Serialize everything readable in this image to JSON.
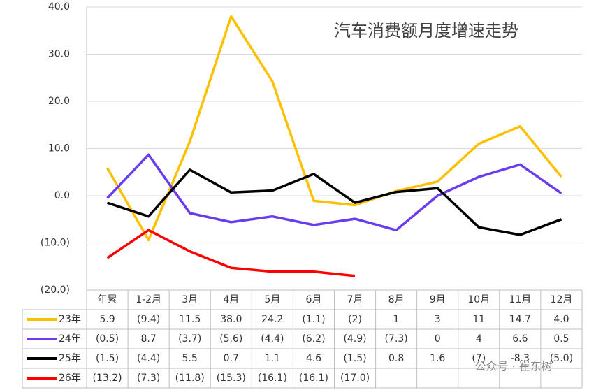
{
  "chart_data": {
    "type": "line",
    "title": "汽车消费额月度增速走势",
    "watermark": "公众号 · 崔东树",
    "categories": [
      "年累",
      "1-2月",
      "3月",
      "4月",
      "5月",
      "6月",
      "7月",
      "8月",
      "9月",
      "10月",
      "11月",
      "12月"
    ],
    "ylim": [
      -20,
      40
    ],
    "yticks": [
      {
        "value": 40,
        "label": "40.0"
      },
      {
        "value": 30,
        "label": "30.0"
      },
      {
        "value": 20,
        "label": "20.0"
      },
      {
        "value": 10,
        "label": "10.0"
      },
      {
        "value": 0,
        "label": "0.0"
      },
      {
        "value": -10,
        "label": "(10.0)"
      },
      {
        "value": -20,
        "label": "(20.0)"
      }
    ],
    "grid": true,
    "series": [
      {
        "name": "23年",
        "color": "#ffc000",
        "values": [
          5.9,
          -9.4,
          11.5,
          38,
          24.2,
          -1.1,
          -2,
          1,
          3,
          11,
          14.7,
          4
        ],
        "value_labels": [
          "5.9",
          "(9.4)",
          "11.5",
          "38.0",
          "24.2",
          "(1.1)",
          "(2)",
          "1",
          "3",
          "11",
          "14.7",
          "4.0"
        ]
      },
      {
        "name": "24年",
        "color": "#6a3cf0",
        "values": [
          -0.5,
          8.7,
          -3.7,
          -5.6,
          -4.4,
          -6.2,
          -4.9,
          -7.3,
          0,
          4,
          6.6,
          0.5
        ],
        "value_labels": [
          "(0.5)",
          "8.7",
          "(3.7)",
          "(5.6)",
          "(4.4)",
          "(6.2)",
          "(4.9)",
          "(7.3)",
          "0",
          "4",
          "6.6",
          "0.5"
        ]
      },
      {
        "name": "25年",
        "color": "#000000",
        "values": [
          -1.5,
          -4.4,
          5.5,
          0.7,
          1.1,
          4.6,
          -1.5,
          0.8,
          1.6,
          -6.7,
          -8.3,
          -5
        ],
        "value_labels": [
          "(1.5)",
          "(4.4)",
          "5.5",
          "0.7",
          "1.1",
          "4.6",
          "(1.5)",
          "0.8",
          "1.6",
          "(7)",
          "-8.3",
          "(5.0)"
        ]
      },
      {
        "name": "26年",
        "color": "#ff0000",
        "values": [
          -13.2,
          -7.3,
          -11.8,
          -15.3,
          -16.1,
          -16.1,
          -17,
          null,
          null,
          null,
          null,
          null
        ],
        "value_labels": [
          "(13.2)",
          "(7.3)",
          "(11.8)",
          "(15.3)",
          "(16.1)",
          "(16.1)",
          "(17.0)",
          null,
          null,
          null,
          null,
          null
        ]
      }
    ]
  }
}
